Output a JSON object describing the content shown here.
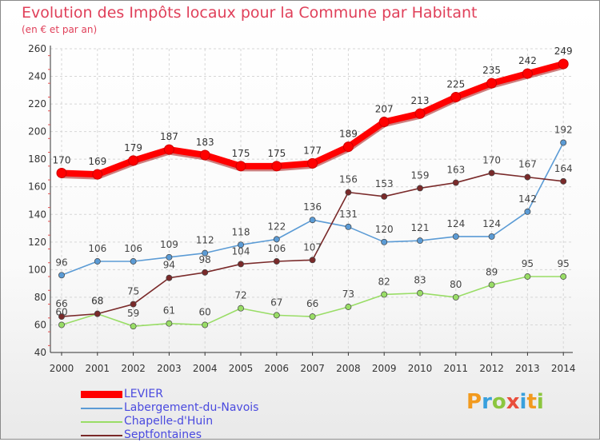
{
  "header": {
    "title": "Evolution des Impôts locaux pour la Commune par Habitant",
    "subtitle": "(en € et par an)"
  },
  "logo": {
    "text": "Proxiti",
    "letters": [
      {
        "ch": "P",
        "color": "#f29a1e"
      },
      {
        "ch": "r",
        "color": "#39a0dd"
      },
      {
        "ch": "o",
        "color": "#8cc63f"
      },
      {
        "ch": "x",
        "color": "#e94e3c"
      },
      {
        "ch": "i",
        "color": "#39a0dd"
      },
      {
        "ch": "t",
        "color": "#f29a1e"
      },
      {
        "ch": "i",
        "color": "#8cc63f"
      }
    ]
  },
  "chart_data": {
    "type": "line",
    "title": "Evolution des Impôts locaux pour la Commune par Habitant",
    "subtitle": "(en € et par an)",
    "xlabel": "",
    "ylabel": "",
    "ylim": [
      40,
      260
    ],
    "y_ticks": [
      40,
      60,
      80,
      100,
      120,
      140,
      160,
      180,
      200,
      220,
      240,
      260
    ],
    "x": [
      "2000",
      "2001",
      "2002",
      "2003",
      "2004",
      "2005",
      "2006",
      "2007",
      "2008",
      "2009",
      "2010",
      "2011",
      "2012",
      "2013",
      "2014"
    ],
    "grid": true,
    "legend_position": "bottom-left",
    "series": [
      {
        "name": "LEVIER",
        "color": "#ff0000",
        "values": [
          170,
          169,
          179,
          187,
          183,
          175,
          175,
          177,
          189,
          207,
          213,
          225,
          235,
          242,
          249
        ]
      },
      {
        "name": "Labergement-du-Navois",
        "color": "#5b9bd5",
        "values": [
          96,
          106,
          106,
          109,
          112,
          118,
          122,
          136,
          131,
          120,
          121,
          124,
          124,
          142,
          192
        ]
      },
      {
        "name": "Chapelle-d'Huin",
        "color": "#99dd66",
        "values": [
          60,
          68,
          59,
          61,
          60,
          72,
          67,
          66,
          73,
          82,
          83,
          80,
          89,
          95,
          95
        ]
      },
      {
        "name": "Septfontaines",
        "color": "#7a2a2a",
        "values": [
          66,
          68,
          75,
          94,
          98,
          104,
          106,
          107,
          156,
          153,
          159,
          163,
          170,
          167,
          164
        ]
      }
    ]
  }
}
